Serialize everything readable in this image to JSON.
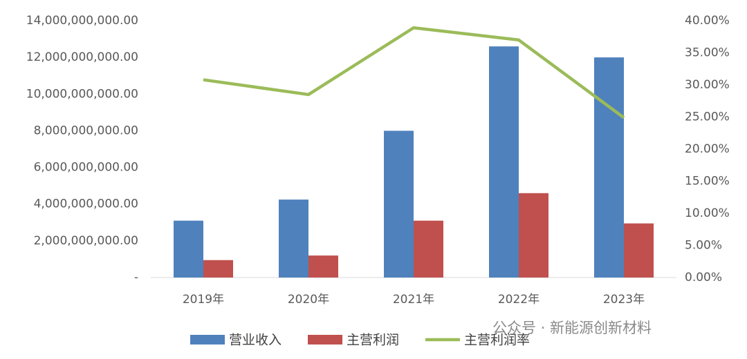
{
  "chart_data": {
    "type": "bar",
    "categories": [
      "2019年",
      "2020年",
      "2021年",
      "2022年",
      "2023年"
    ],
    "series": [
      {
        "name": "营业收入",
        "color": "#4f81bd",
        "type": "bar",
        "values": [
          3100000000,
          4250000000,
          8000000000,
          12600000000,
          12000000000
        ]
      },
      {
        "name": "主营利润",
        "color": "#c0504d",
        "type": "bar",
        "values": [
          950000000,
          1200000000,
          3100000000,
          4600000000,
          2950000000
        ]
      },
      {
        "name": "主营利润率",
        "color": "#9bbb59",
        "type": "line",
        "axis": "y2",
        "values": [
          30.8,
          28.5,
          38.9,
          37.0,
          24.9
        ]
      }
    ],
    "ylim": [
      0,
      14000000000
    ],
    "yticks": [
      {
        "value": 0,
        "label": "-"
      },
      {
        "value": 2000000000,
        "label": "2,000,000,000.00"
      },
      {
        "value": 4000000000,
        "label": "4,000,000,000.00"
      },
      {
        "value": 6000000000,
        "label": "6,000,000,000.00"
      },
      {
        "value": 8000000000,
        "label": "8,000,000,000.00"
      },
      {
        "value": 10000000000,
        "label": "10,000,000,000.00"
      },
      {
        "value": 12000000000,
        "label": "12,000,000,000.00"
      },
      {
        "value": 14000000000,
        "label": "14,000,000,000.00"
      }
    ],
    "y2lim": [
      0,
      40
    ],
    "y2ticks": [
      {
        "value": 0,
        "label": "0.00%"
      },
      {
        "value": 5,
        "label": "5.00%"
      },
      {
        "value": 10,
        "label": "10.00%"
      },
      {
        "value": 15,
        "label": "15.00%"
      },
      {
        "value": 20,
        "label": "20.00%"
      },
      {
        "value": 25,
        "label": "25.00%"
      },
      {
        "value": 30,
        "label": "30.00%"
      },
      {
        "value": 35,
        "label": "35.00%"
      },
      {
        "value": 40,
        "label": "40.00%"
      }
    ],
    "grid": false,
    "legend": "bottom"
  },
  "watermark": "公众号 · 新能源创新材料"
}
